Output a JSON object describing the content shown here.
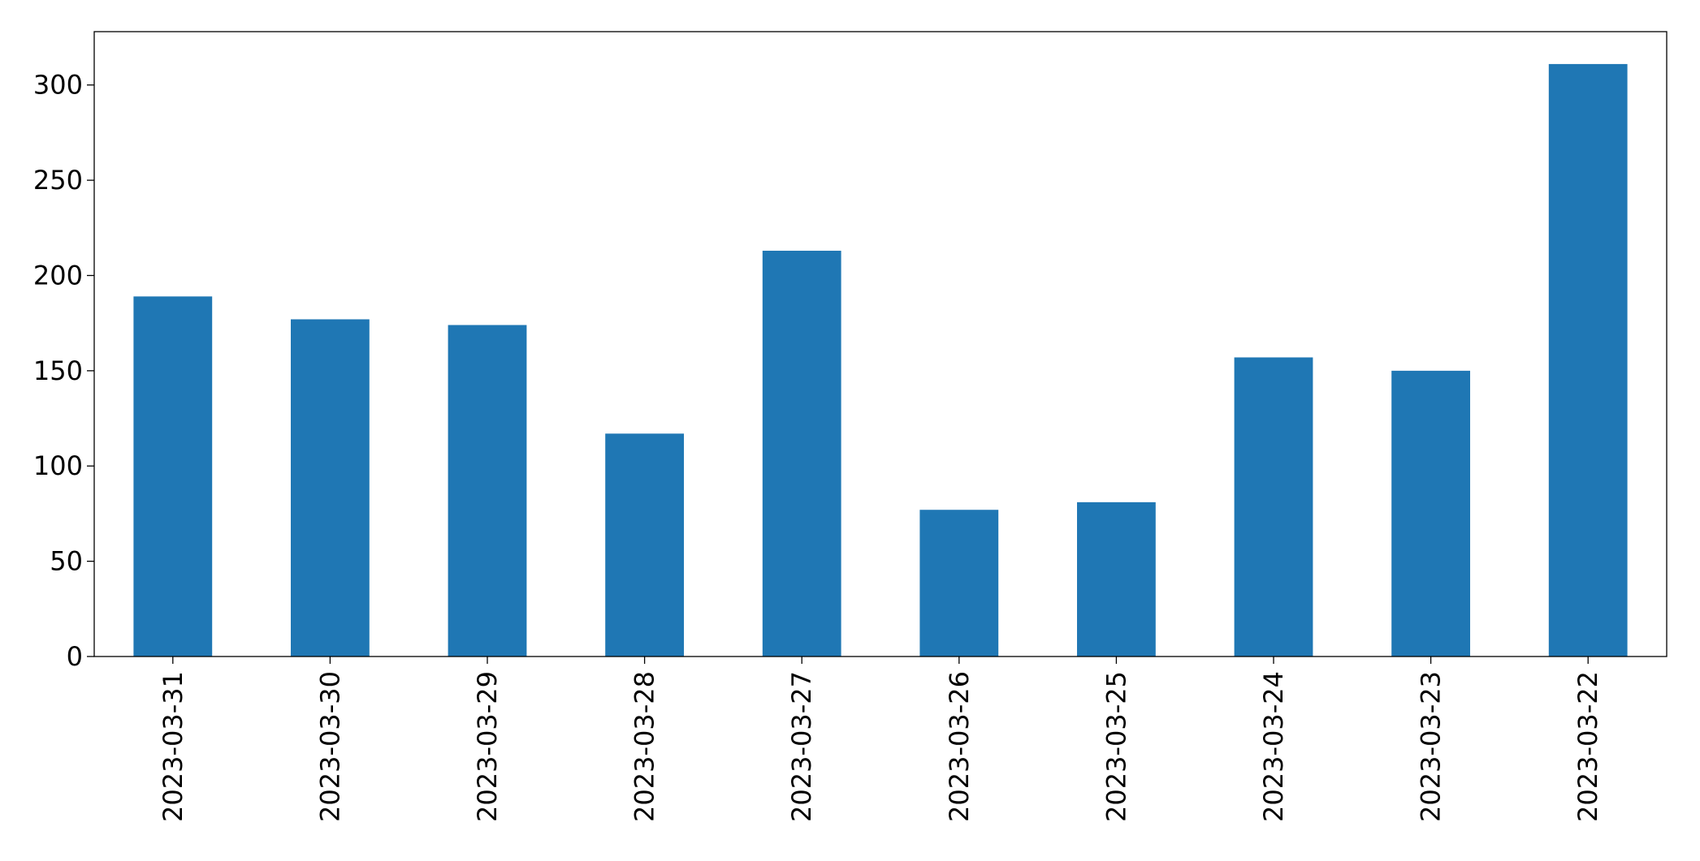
{
  "chart_data": {
    "type": "bar",
    "categories": [
      "2023-03-31",
      "2023-03-30",
      "2023-03-29",
      "2023-03-28",
      "2023-03-27",
      "2023-03-26",
      "2023-03-25",
      "2023-03-24",
      "2023-03-23",
      "2023-03-22"
    ],
    "values": [
      189,
      177,
      174,
      117,
      213,
      77,
      81,
      157,
      150,
      311
    ],
    "color": "#1f77b4",
    "ylim": [
      0,
      328
    ],
    "yticks": [
      0,
      50,
      100,
      150,
      200,
      250,
      300
    ],
    "grid": false
  }
}
